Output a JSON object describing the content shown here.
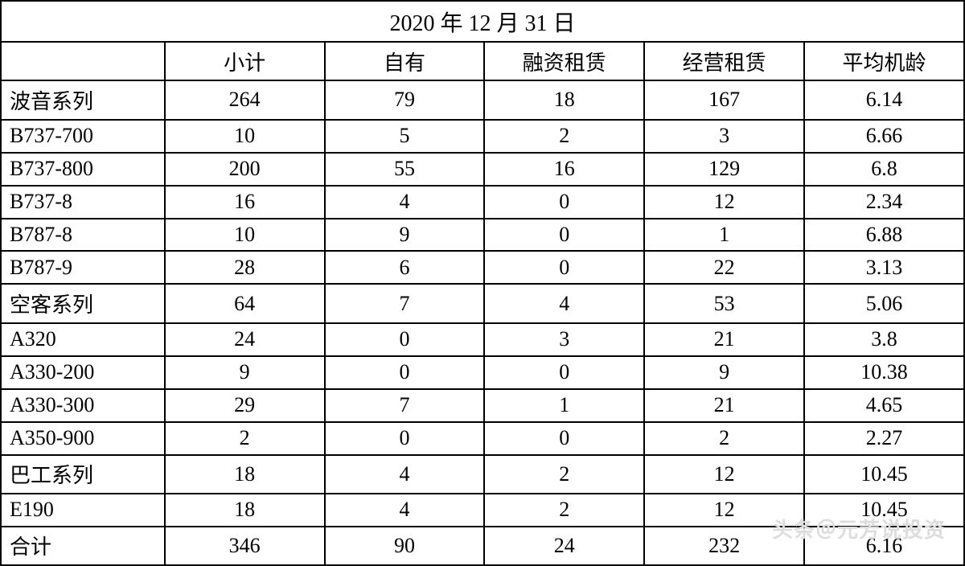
{
  "table": {
    "title": "2020 年 12 月 31 日",
    "columns": [
      "",
      "小计",
      "自有",
      "融资租赁",
      "经营租赁",
      "平均机龄"
    ],
    "rows": [
      {
        "label": "波音系列",
        "cells": [
          "264",
          "79",
          "18",
          "167",
          "6.14"
        ]
      },
      {
        "label": "B737-700",
        "cells": [
          "10",
          "5",
          "2",
          "3",
          "6.66"
        ]
      },
      {
        "label": "B737-800",
        "cells": [
          "200",
          "55",
          "16",
          "129",
          "6.8"
        ]
      },
      {
        "label": "B737-8",
        "cells": [
          "16",
          "4",
          "0",
          "12",
          "2.34"
        ]
      },
      {
        "label": "B787-8",
        "cells": [
          "10",
          "9",
          "0",
          "1",
          "6.88"
        ]
      },
      {
        "label": "B787-9",
        "cells": [
          "28",
          "6",
          "0",
          "22",
          "3.13"
        ]
      },
      {
        "label": "空客系列",
        "cells": [
          "64",
          "7",
          "4",
          "53",
          "5.06"
        ]
      },
      {
        "label": "A320",
        "cells": [
          "24",
          "0",
          "3",
          "21",
          "3.8"
        ]
      },
      {
        "label": "A330-200",
        "cells": [
          "9",
          "0",
          "0",
          "9",
          "10.38"
        ]
      },
      {
        "label": "A330-300",
        "cells": [
          "29",
          "7",
          "1",
          "21",
          "4.65"
        ]
      },
      {
        "label": "A350-900",
        "cells": [
          "2",
          "0",
          "0",
          "2",
          "2.27"
        ]
      },
      {
        "label": "巴工系列",
        "cells": [
          "18",
          "4",
          "2",
          "12",
          "10.45"
        ]
      },
      {
        "label": "E190",
        "cells": [
          "18",
          "4",
          "2",
          "12",
          "10.45"
        ]
      },
      {
        "label": "合计",
        "cells": [
          "346",
          "90",
          "24",
          "232",
          "6.16"
        ]
      }
    ],
    "border_color": "#000000",
    "background_color": "#ffffff",
    "text_color": "#000000",
    "title_fontsize": 28,
    "cell_fontsize": 26,
    "col_widths_pct": [
      17,
      16.6,
      16.6,
      16.6,
      16.6,
      16.6
    ]
  },
  "watermark": {
    "text": "头条＠元芳说投资",
    "color": "#dddddd",
    "fontsize": 26
  }
}
